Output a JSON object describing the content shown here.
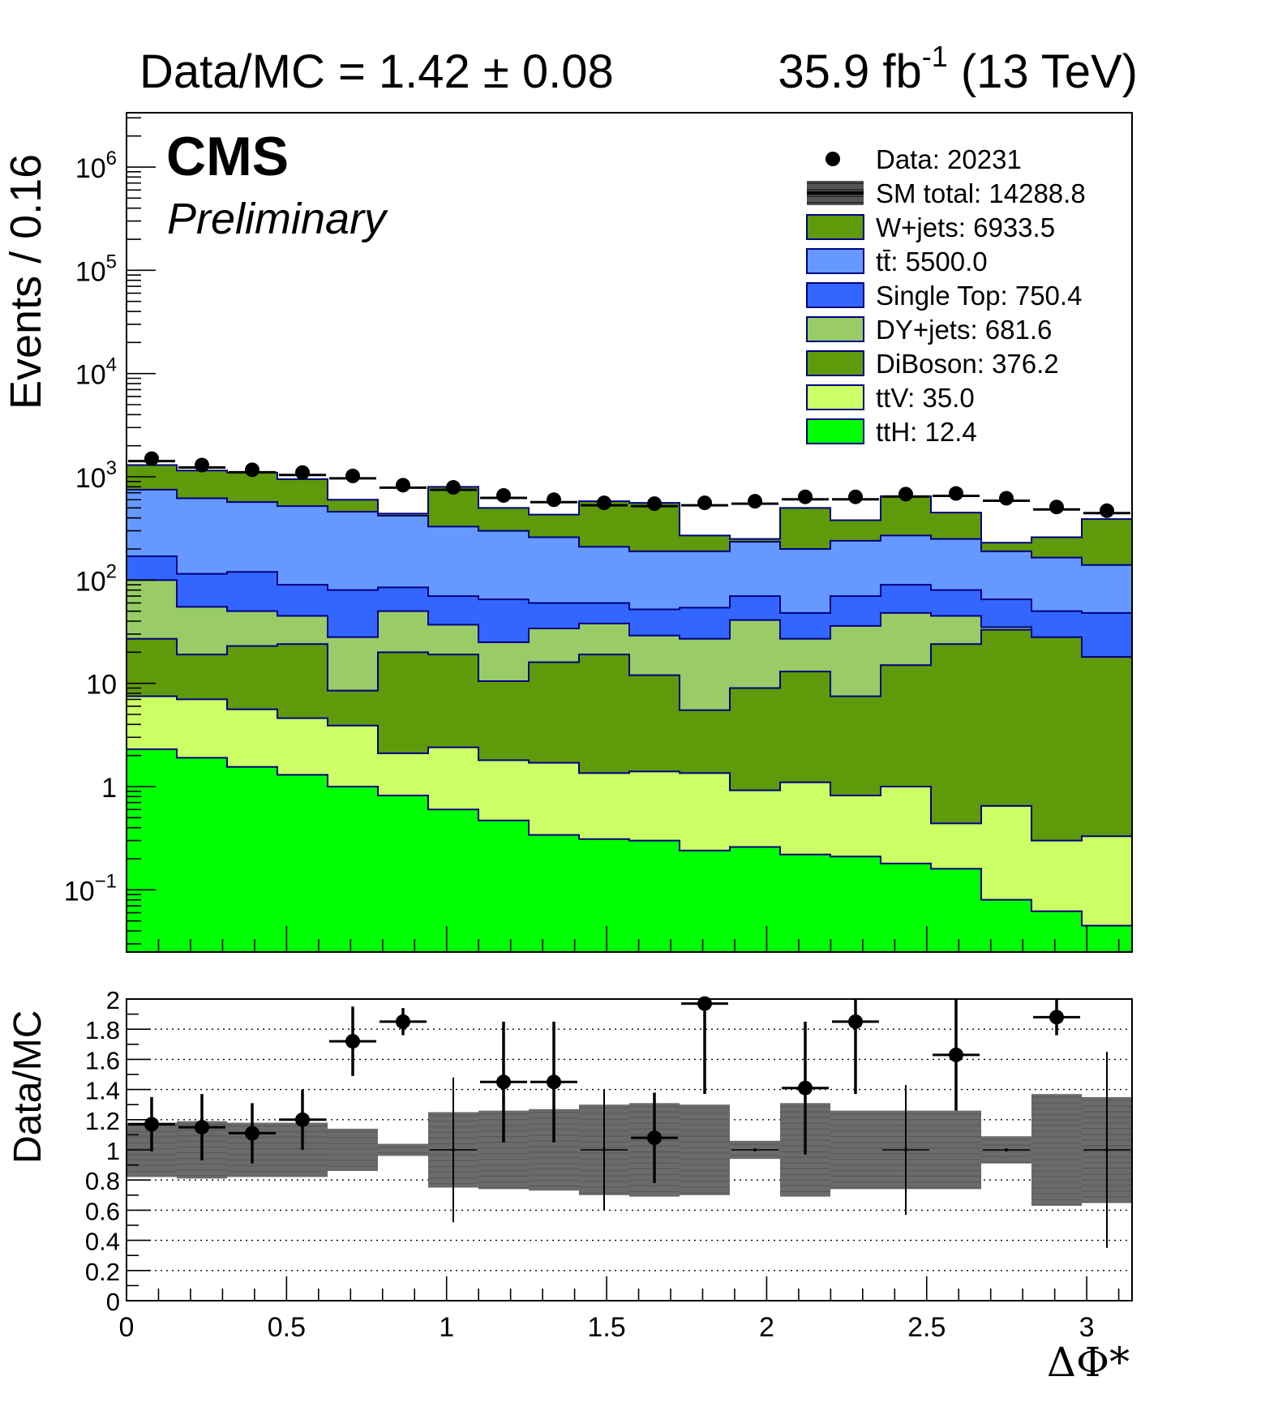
{
  "header": {
    "ratio_text": "Data/MC = 1.42 ± 0.08",
    "lumi_main": "35.9 fb",
    "lumi_sup": "-1",
    "lumi_energy": " (13 TeV)",
    "cms": "CMS",
    "preliminary": "Preliminary"
  },
  "chart_data": [
    {
      "type": "bar",
      "subtype": "stacked-histogram",
      "ylabel": "Events / 0.16",
      "yscale": "log",
      "ylim": [
        0.025,
        3000000
      ],
      "xlim": [
        0,
        3.1416
      ],
      "bin_width": 0.1571,
      "n_bins": 20,
      "y_tick_labels": [
        "10^-1",
        "1",
        "10",
        "10^2",
        "10^3",
        "10^4",
        "10^5",
        "10^6"
      ],
      "legend_position": "top-right",
      "legend": [
        {
          "label": "Data: 20231",
          "style": "marker",
          "color": "#000000"
        },
        {
          "label": "SM total: 14288.8",
          "style": "band",
          "color": "#555555"
        },
        {
          "label": "W+jets: 6933.5",
          "style": "fill",
          "color": "#5e9a0a"
        },
        {
          "label": "tt̄: 5500.0",
          "style": "fill",
          "color": "#6699ff"
        },
        {
          "label": "Single Top: 750.4",
          "style": "fill",
          "color": "#3366ff"
        },
        {
          "label": "DY+jets: 681.6",
          "style": "fill",
          "color": "#99cc66"
        },
        {
          "label": "DiBoson: 376.2",
          "style": "fill",
          "color": "#5e9a0a"
        },
        {
          "label": "ttV: 35.0",
          "style": "fill",
          "color": "#ccff66"
        },
        {
          "label": "ttH: 12.4",
          "style": "fill",
          "color": "#00ff00"
        }
      ],
      "stack_bottom_to_top": [
        "ttH",
        "ttV",
        "DiBoson",
        "DY+jets",
        "Single Top",
        "tt̄",
        "W+jets"
      ],
      "cumulative_series": [
        {
          "name": "ttH",
          "color": "#00ff00",
          "values": [
            2.3,
            1.9,
            1.55,
            1.3,
            1.0,
            0.82,
            0.6,
            0.47,
            0.34,
            0.31,
            0.3,
            0.24,
            0.26,
            0.22,
            0.21,
            0.18,
            0.16,
            0.08,
            0.062,
            0.045
          ]
        },
        {
          "name": "ttV",
          "color": "#ccff66",
          "values": [
            7.5,
            7.0,
            5.6,
            4.6,
            3.9,
            2.1,
            2.4,
            1.8,
            1.7,
            1.35,
            1.4,
            1.35,
            0.92,
            1.1,
            0.82,
            1.0,
            0.44,
            0.65,
            0.3,
            0.33
          ]
        },
        {
          "name": "DiBoson",
          "color": "#5e9a0a",
          "values": [
            27,
            19,
            23,
            24,
            8.5,
            20,
            19,
            10.5,
            16,
            19,
            12,
            5.5,
            9,
            13,
            7.5,
            15,
            24,
            33,
            28,
            18
          ]
        },
        {
          "name": "DY+jets",
          "color": "#99cc66",
          "values": [
            100,
            55,
            50,
            45,
            28,
            50,
            37,
            25,
            34,
            38,
            29,
            27,
            41,
            27,
            36,
            48,
            45,
            35,
            26,
            18
          ]
        },
        {
          "name": "Single Top",
          "color": "#3366ff",
          "values": [
            170,
            115,
            120,
            90,
            80,
            85,
            70,
            65,
            60,
            60,
            52,
            54,
            70,
            48,
            70,
            90,
            80,
            65,
            50,
            48
          ]
        },
        {
          "name": "tt̄",
          "color": "#6699ff",
          "values": [
            750,
            620,
            570,
            520,
            460,
            420,
            330,
            300,
            260,
            210,
            190,
            190,
            235,
            200,
            240,
            270,
            250,
            190,
            165,
            140
          ]
        },
        {
          "name": "W+jets",
          "color": "#5e9a0a",
          "values": [
            1300,
            1150,
            1100,
            950,
            600,
            440,
            800,
            500,
            430,
            580,
            560,
            270,
            250,
            500,
            380,
            650,
            450,
            230,
            260,
            390
          ]
        }
      ],
      "data_points": [
        1500,
        1300,
        1170,
        1100,
        1020,
        830,
        790,
        660,
        600,
        560,
        550,
        560,
        580,
        640,
        640,
        680,
        690,
        620,
        510,
        470
      ]
    },
    {
      "type": "scatter",
      "subtype": "ratio",
      "ylabel": "Data/MC",
      "xlabel": "ΔΦ*",
      "ylim": [
        0,
        2
      ],
      "xlim": [
        0,
        3.1416
      ],
      "grid": "horizontal dotted",
      "y_tick_labels": [
        "0",
        "0.2",
        "0.4",
        "0.6",
        "0.8",
        "1",
        "1.2",
        "1.4",
        "1.6",
        "1.8",
        "2"
      ],
      "x_tick_labels": [
        "0",
        "0.5",
        "1",
        "1.5",
        "2",
        "2.5",
        "3"
      ],
      "x_tick_values": [
        0,
        0.5,
        1,
        1.5,
        2,
        2.5,
        3
      ],
      "ratio": [
        1.17,
        1.15,
        1.11,
        1.2,
        1.72,
        1.85,
        1.0,
        1.45,
        1.45,
        1.0,
        1.08,
        1.97,
        1.0,
        1.41,
        1.85,
        1.0,
        1.63,
        1.0,
        1.88,
        1.0
      ],
      "ratio_err_up": [
        0.18,
        0.22,
        0.2,
        0.2,
        0.23,
        0.09,
        0.48,
        0.4,
        0.4,
        0.4,
        0.3,
        0.03,
        0.0,
        0.44,
        0.15,
        0.43,
        0.37,
        0.0,
        0.12,
        0.65
      ],
      "ratio_err_down": [
        0.18,
        0.22,
        0.2,
        0.2,
        0.23,
        0.09,
        0.48,
        0.4,
        0.4,
        0.4,
        0.3,
        0.6,
        0.0,
        0.44,
        0.48,
        0.43,
        0.37,
        0.0,
        0.12,
        0.65
      ],
      "uncertainty_band_low": [
        0.82,
        0.81,
        0.82,
        0.82,
        0.86,
        0.96,
        0.75,
        0.74,
        0.73,
        0.7,
        0.69,
        0.7,
        0.94,
        0.69,
        0.74,
        0.74,
        0.74,
        0.91,
        0.63,
        0.65
      ],
      "uncertainty_band_high": [
        1.18,
        1.19,
        1.18,
        1.18,
        1.14,
        1.04,
        1.25,
        1.26,
        1.27,
        1.3,
        1.31,
        1.3,
        1.06,
        1.31,
        1.26,
        1.26,
        1.26,
        1.09,
        1.37,
        1.35
      ],
      "band_color": "#6b6b6b"
    }
  ]
}
